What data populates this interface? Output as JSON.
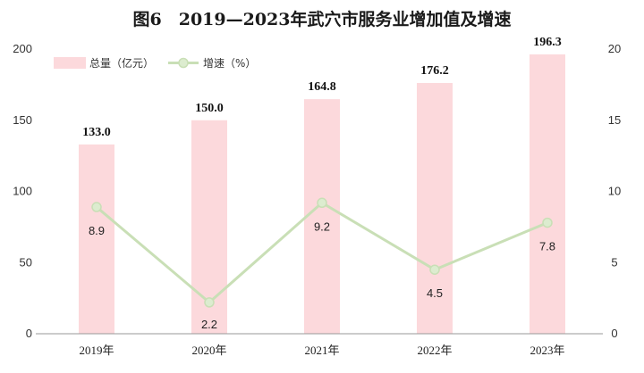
{
  "chart_data": {
    "type": "bar",
    "title": "图6　2019—2023年武穴市服务业增加值及增速",
    "categories": [
      "2019年",
      "2020年",
      "2021年",
      "2022年",
      "2023年"
    ],
    "series": [
      {
        "name": "总量（亿元）",
        "type": "bar",
        "axis": "left",
        "values": [
          133.0,
          150.0,
          164.8,
          176.2,
          196.3
        ],
        "labels": [
          "133.0",
          "150.0",
          "164.8",
          "176.2",
          "196.3"
        ],
        "color": "#fcd9dc"
      },
      {
        "name": "增速（%）",
        "type": "line",
        "axis": "right",
        "values": [
          8.9,
          2.2,
          9.2,
          4.5,
          7.8
        ],
        "labels": [
          "8.9",
          "2.2",
          "9.2",
          "4.5",
          "7.8"
        ],
        "color": "#c9dfb6"
      }
    ],
    "y_left": {
      "min": 0,
      "max": 200,
      "ticks": [
        "0",
        "50",
        "100",
        "150",
        "200"
      ]
    },
    "y_right": {
      "min": 0,
      "max": 20,
      "ticks": [
        "0",
        "5",
        "10",
        "15",
        "20"
      ]
    },
    "legend_position": "top-left",
    "grid": false
  }
}
